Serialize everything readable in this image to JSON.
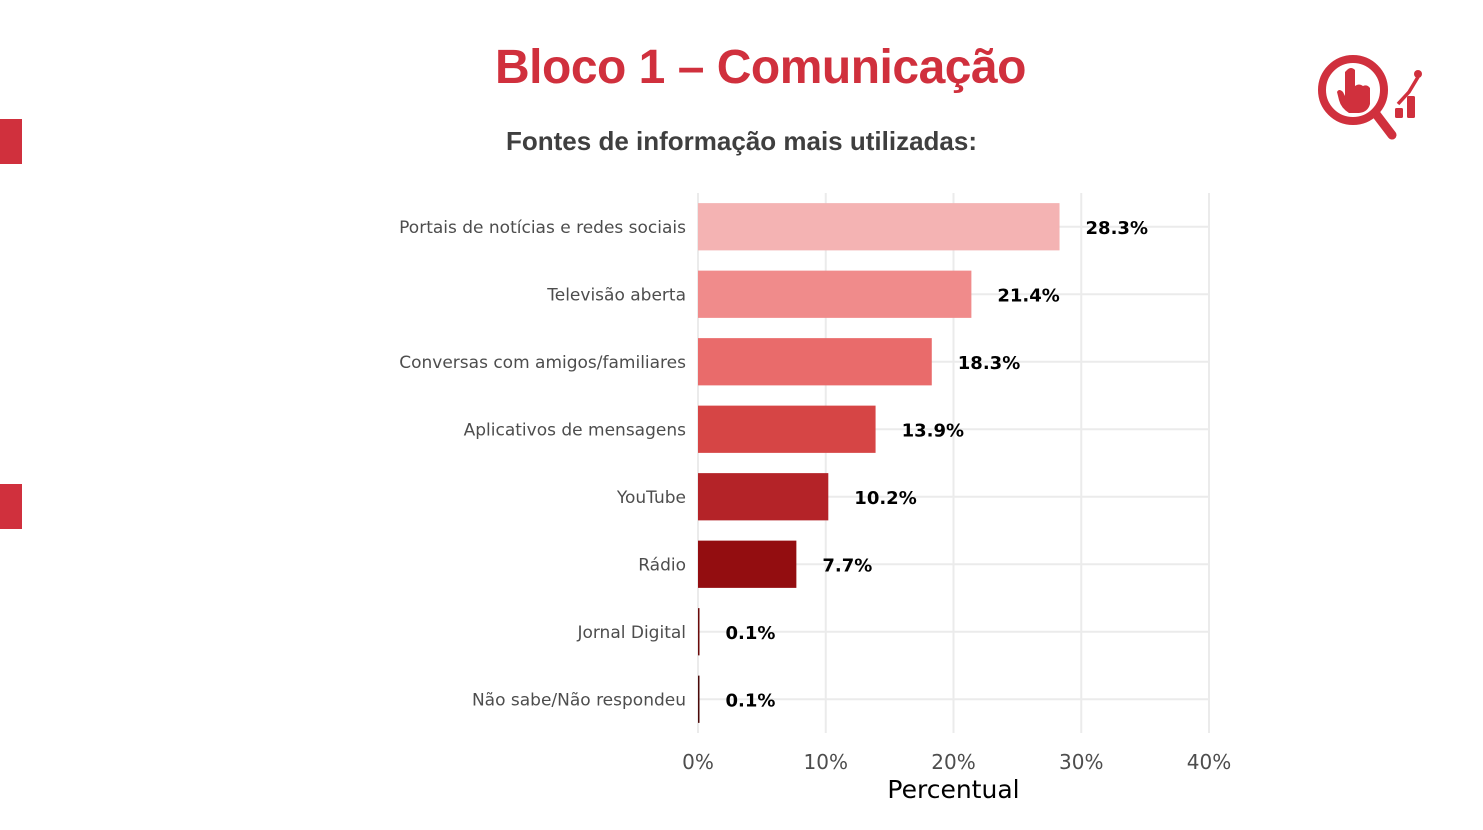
{
  "header": {
    "title": "Bloco 1 – Comunicação",
    "subtitle": "Fontes de informação mais utilizadas:"
  },
  "colors": {
    "brand": "#d0303d",
    "text_dark": "#3f3f3f",
    "axis_text": "#4d4d4d",
    "grid": "#ebebeb"
  },
  "icons": {
    "logo": "magnifier-hand-chart-icon"
  },
  "chart_data": {
    "type": "bar",
    "orientation": "horizontal",
    "categories": [
      "Portais de notícias e redes sociais",
      "Televisão aberta",
      "Conversas com amigos/familiares",
      "Aplicativos de mensagens",
      "YouTube",
      "Rádio",
      "Jornal Digital",
      "Não sabe/Não respondeu"
    ],
    "values": [
      28.3,
      21.4,
      18.3,
      13.9,
      10.2,
      7.7,
      0.1,
      0.1
    ],
    "data_labels": [
      "28.3%",
      "21.4%",
      "18.3%",
      "13.9%",
      "10.2%",
      "7.7%",
      "0.1%",
      "0.1%"
    ],
    "bar_colors": [
      "#f4b3b3",
      "#f08b8b",
      "#e96b6b",
      "#d64545",
      "#b42328",
      "#930d10",
      "#6b0a0a",
      "#4a0808"
    ],
    "xlabel": "Percentual",
    "ylabel": "",
    "xlim": [
      0,
      40
    ],
    "x_ticks": [
      0,
      10,
      20,
      30,
      40
    ],
    "x_tick_labels": [
      "0%",
      "10%",
      "20%",
      "30%",
      "40%"
    ],
    "grid": true,
    "legend": "none"
  }
}
